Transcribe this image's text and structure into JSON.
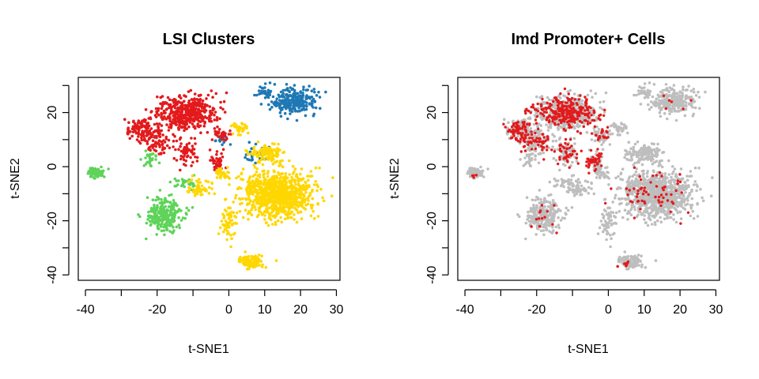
{
  "chart_data": [
    {
      "type": "scatter",
      "title": "LSI Clusters",
      "xlabel": "t-SNE1",
      "ylabel": "t-SNE2",
      "xlim": [
        -42,
        31
      ],
      "ylim": [
        -42,
        33
      ],
      "xticks": [
        -40,
        -30,
        -20,
        -10,
        0,
        10,
        20,
        30
      ],
      "xtick_labels": [
        "-40",
        "",
        "-20",
        "",
        "0",
        "10",
        "20",
        "30"
      ],
      "yticks": [
        -40,
        -30,
        -20,
        -10,
        0,
        10,
        20,
        30
      ],
      "ytick_labels": [
        "-40",
        "",
        "-20",
        "",
        "0",
        "",
        "20",
        ""
      ],
      "grid": false,
      "colors": {
        "red": "#e31a1c",
        "green": "#5fd35a",
        "blue": "#1f78b4",
        "yellow": "#ffd700"
      },
      "clusters": [
        {
          "color": "red",
          "center": [
            -12,
            20
          ],
          "spread": [
            7,
            5
          ],
          "n": 420
        },
        {
          "color": "red",
          "center": [
            -25,
            14
          ],
          "spread": [
            3,
            3
          ],
          "n": 90
        },
        {
          "color": "red",
          "center": [
            -20,
            10
          ],
          "spread": [
            4,
            4
          ],
          "n": 90
        },
        {
          "color": "red",
          "center": [
            -12,
            5
          ],
          "spread": [
            3,
            4
          ],
          "n": 60
        },
        {
          "color": "red",
          "center": [
            -2,
            12
          ],
          "spread": [
            2,
            2
          ],
          "n": 30
        },
        {
          "color": "red",
          "center": [
            -3,
            2
          ],
          "spread": [
            2,
            3
          ],
          "n": 40
        },
        {
          "color": "blue",
          "center": [
            18,
            24
          ],
          "spread": [
            5,
            4
          ],
          "n": 260
        },
        {
          "color": "blue",
          "center": [
            10,
            28
          ],
          "spread": [
            2,
            2
          ],
          "n": 30
        },
        {
          "color": "blue",
          "center": [
            8,
            5
          ],
          "spread": [
            3,
            3
          ],
          "n": 30
        },
        {
          "color": "blue",
          "center": [
            -2,
            10
          ],
          "spread": [
            2,
            2
          ],
          "n": 15
        },
        {
          "color": "green",
          "center": [
            -37,
            -2
          ],
          "spread": [
            2,
            1.5
          ],
          "n": 90
        },
        {
          "color": "green",
          "center": [
            -18,
            -18
          ],
          "spread": [
            4,
            5
          ],
          "n": 260
        },
        {
          "color": "green",
          "center": [
            -22,
            3
          ],
          "spread": [
            2,
            3
          ],
          "n": 30
        },
        {
          "color": "green",
          "center": [
            -12,
            -6
          ],
          "spread": [
            3,
            2
          ],
          "n": 30
        },
        {
          "color": "yellow",
          "center": [
            14,
            -10
          ],
          "spread": [
            8,
            7
          ],
          "n": 900
        },
        {
          "color": "yellow",
          "center": [
            10,
            5
          ],
          "spread": [
            4,
            3
          ],
          "n": 120
        },
        {
          "color": "yellow",
          "center": [
            6,
            -35
          ],
          "spread": [
            3,
            2
          ],
          "n": 100
        },
        {
          "color": "yellow",
          "center": [
            3,
            14
          ],
          "spread": [
            2,
            2
          ],
          "n": 30
        },
        {
          "color": "yellow",
          "center": [
            -8,
            -8
          ],
          "spread": [
            3,
            3
          ],
          "n": 50
        },
        {
          "color": "yellow",
          "center": [
            -2,
            -3
          ],
          "spread": [
            2,
            2
          ],
          "n": 30
        },
        {
          "color": "yellow",
          "center": [
            0,
            -20
          ],
          "spread": [
            2,
            5
          ],
          "n": 60
        }
      ]
    },
    {
      "type": "scatter",
      "title": "Imd Promoter+ Cells",
      "xlabel": "t-SNE1",
      "ylabel": "t-SNE2",
      "xlim": [
        -42,
        31
      ],
      "ylim": [
        -42,
        33
      ],
      "xticks": [
        -40,
        -30,
        -20,
        -10,
        0,
        10,
        20,
        30
      ],
      "xtick_labels": [
        "-40",
        "",
        "-20",
        "",
        "0",
        "10",
        "20",
        "30"
      ],
      "yticks": [
        -40,
        -30,
        -20,
        -10,
        0,
        10,
        20,
        30
      ],
      "ytick_labels": [
        "-40",
        "",
        "-20",
        "",
        "0",
        "",
        "20",
        ""
      ],
      "grid": false,
      "colors": {
        "background": "#bebebe",
        "highlight": "#e31a1c"
      },
      "background_cells": "same layout as LSI Clusters",
      "highlight_clusters": [
        {
          "center": [
            -12,
            20
          ],
          "spread": [
            7,
            5
          ],
          "n": 260
        },
        {
          "center": [
            -25,
            14
          ],
          "spread": [
            3,
            3
          ],
          "n": 60
        },
        {
          "center": [
            -20,
            10
          ],
          "spread": [
            4,
            4
          ],
          "n": 60
        },
        {
          "center": [
            -12,
            5
          ],
          "spread": [
            3,
            4
          ],
          "n": 40
        },
        {
          "center": [
            -2,
            12
          ],
          "spread": [
            2,
            2
          ],
          "n": 20
        },
        {
          "center": [
            -4,
            2
          ],
          "spread": [
            2,
            3
          ],
          "n": 40
        },
        {
          "center": [
            12,
            -10
          ],
          "spread": [
            8,
            7
          ],
          "n": 60
        },
        {
          "center": [
            -18,
            -18
          ],
          "spread": [
            4,
            5
          ],
          "n": 14
        },
        {
          "center": [
            5,
            -36
          ],
          "spread": [
            2,
            1.5
          ],
          "n": 8
        },
        {
          "center": [
            -38,
            -3
          ],
          "spread": [
            1.5,
            1
          ],
          "n": 4
        },
        {
          "center": [
            18,
            24
          ],
          "spread": [
            5,
            4
          ],
          "n": 6
        }
      ]
    }
  ]
}
